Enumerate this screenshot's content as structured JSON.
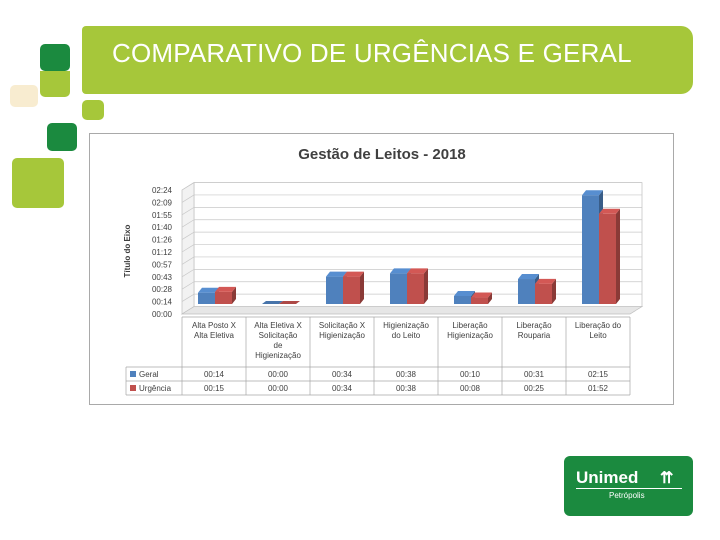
{
  "slide": {
    "title": "COMPARATIVO DE URGÊNCIAS E GERAL"
  },
  "logo": {
    "brand": "Unimed",
    "city": "Petrópolis"
  },
  "colors": {
    "green_dark": "#1b8a3f",
    "green_light": "#a6c73a",
    "beige": "#f8ecd0",
    "series_geral": "#4f81bd",
    "series_urgencia": "#c0504d"
  },
  "chart_data": {
    "type": "bar",
    "title": "Gestão de Leitos - 2018",
    "ylabel": "Título do Eixo",
    "xlabel": "",
    "ylim_minutes": [
      0,
      144
    ],
    "y_ticks": [
      "00:00",
      "00:14",
      "00:28",
      "00:43",
      "00:57",
      "01:12",
      "01:26",
      "01:40",
      "01:55",
      "02:09",
      "02:24"
    ],
    "categories": [
      [
        "Alta Posto X",
        "Alta Eletiva"
      ],
      [
        "Alta Eletiva X",
        "Solicitação",
        "de",
        "Higienização"
      ],
      [
        "Solicitação X",
        "Higienização"
      ],
      [
        "Higienização",
        "do Leito"
      ],
      [
        "Liberação",
        "Higienização"
      ],
      [
        "Liberação",
        "Rouparia"
      ],
      [
        "Liberação do",
        "Leito"
      ]
    ],
    "series": [
      {
        "name": "Geral",
        "color": "#4f81bd",
        "labels": [
          "00:14",
          "00:00",
          "00:34",
          "00:38",
          "00:10",
          "00:31",
          "02:15"
        ],
        "values_minutes": [
          14,
          0,
          34,
          38,
          10,
          31,
          135
        ]
      },
      {
        "name": "Urgência",
        "color": "#c0504d",
        "labels": [
          "00:15",
          "00:00",
          "00:34",
          "00:38",
          "00:08",
          "00:25",
          "01:52"
        ],
        "values_minutes": [
          15,
          0,
          34,
          38,
          8,
          25,
          112
        ]
      }
    ],
    "legend": "data-table-left",
    "grid": true
  }
}
